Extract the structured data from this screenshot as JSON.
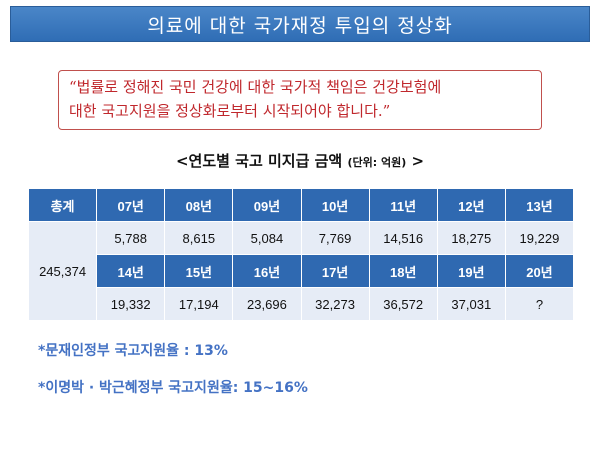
{
  "slide": {
    "title": "의료에 대한 국가재정 투입의 정상화",
    "quote_line1": "“법률로 정해진 국민 건강에 대한 국가적 책임은 건강보험에",
    "quote_line2": "대한 국고지원을 정상화로부터 시작되어야 합니다.”",
    "table_title": "<연도별 국고 미지급 금액",
    "table_unit": "(단위: 억원)",
    "table_title_close": ">",
    "table": {
      "total_label": "총계",
      "total_value": "245,374",
      "header_row1": [
        "07년",
        "08년",
        "09년",
        "10년",
        "11년",
        "12년",
        "13년"
      ],
      "values_row1": [
        "5,788",
        "8,615",
        "5,084",
        "7,769",
        "14,516",
        "18,275",
        "19,229"
      ],
      "header_row2": [
        "14년",
        "15년",
        "16년",
        "17년",
        "18년",
        "19년",
        "20년"
      ],
      "values_row2": [
        "19,332",
        "17,194",
        "23,696",
        "32,273",
        "36,572",
        "37,031",
        "?"
      ]
    },
    "note1": "*문재인정부 국고지원율 : 13%",
    "note2": "*이명박 · 박근혜정부 국고지원율: 15~16%"
  },
  "colors": {
    "title_bar": "#2f6db5",
    "quote_text": "#c0282d",
    "table_header": "#2f69b1",
    "table_cell": "#e6ecf6",
    "note_text": "#4472c4"
  }
}
